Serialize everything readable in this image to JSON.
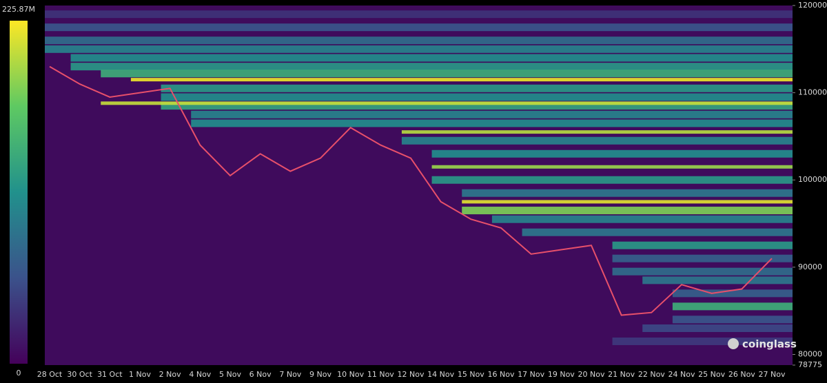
{
  "chart_data": {
    "type": "heatmap",
    "categories": [
      "28 Oct",
      "30 Oct",
      "31 Oct",
      "1 Nov",
      "2 Nov",
      "4 Nov",
      "5 Nov",
      "6 Nov",
      "7 Nov",
      "9 Nov",
      "10 Nov",
      "11 Nov",
      "12 Nov",
      "14 Nov",
      "15 Nov",
      "16 Nov",
      "17 Nov",
      "19 Nov",
      "20 Nov",
      "21 Nov",
      "22 Nov",
      "24 Nov",
      "25 Nov",
      "26 Nov",
      "27 Nov"
    ],
    "values": [
      113000,
      111000,
      109500,
      110000,
      110500,
      104000,
      100500,
      103000,
      101000,
      102500,
      106000,
      104000,
      102500,
      97500,
      95500,
      94500,
      91500,
      92000,
      92500,
      84500,
      84800,
      88000,
      87000,
      87500,
      91000
    ],
    "color": "#e8506a",
    "ylim": [
      78775,
      120000
    ],
    "yticks": [
      78775,
      80000,
      90000,
      100000,
      110000,
      120000
    ],
    "zlim": [
      0,
      225.87
    ],
    "zticks": [
      0,
      {
        "value": 225.87,
        "label": "225.87M"
      }
    ],
    "bands": [
      {
        "price": 119000,
        "start": "28 Oct",
        "value": 35
      },
      {
        "price": 117500,
        "start": "28 Oct",
        "value": 60
      },
      {
        "price": 116000,
        "start": "28 Oct",
        "value": 80
      },
      {
        "price": 115000,
        "start": "28 Oct",
        "value": 100
      },
      {
        "price": 114000,
        "start": "30 Oct",
        "value": 110
      },
      {
        "price": 113000,
        "start": "30 Oct",
        "value": 120
      },
      {
        "price": 112200,
        "start": "31 Oct",
        "value": 140
      },
      {
        "price": 110500,
        "start": "2 Nov",
        "value": 120
      },
      {
        "price": 109500,
        "start": "2 Nov",
        "value": 110
      },
      {
        "price": 108500,
        "start": "2 Nov",
        "value": 130
      },
      {
        "price": 107500,
        "start": "4 Nov",
        "value": 100
      },
      {
        "price": 106500,
        "start": "4 Nov",
        "value": 110
      },
      {
        "price": 104500,
        "start": "12 Nov",
        "value": 100
      },
      {
        "price": 103000,
        "start": "14 Nov",
        "value": 110
      },
      {
        "price": 100000,
        "start": "14 Nov",
        "value": 120
      },
      {
        "price": 98500,
        "start": "15 Nov",
        "value": 90
      },
      {
        "price": 96500,
        "start": "15 Nov",
        "value": 180
      },
      {
        "price": 95500,
        "start": "16 Nov",
        "value": 100
      },
      {
        "price": 94000,
        "start": "17 Nov",
        "value": 90
      },
      {
        "price": 92500,
        "start": "21 Nov",
        "value": 120
      },
      {
        "price": 91000,
        "start": "21 Nov",
        "value": 70
      },
      {
        "price": 89500,
        "start": "21 Nov",
        "value": 80
      },
      {
        "price": 88500,
        "start": "22 Nov",
        "value": 90
      },
      {
        "price": 87000,
        "start": "24 Nov",
        "value": 70
      },
      {
        "price": 85500,
        "start": "24 Nov",
        "value": 140
      },
      {
        "price": 84000,
        "start": "24 Nov",
        "value": 60
      },
      {
        "price": 83000,
        "start": "22 Nov",
        "value": 50
      },
      {
        "price": 81500,
        "start": "21 Nov",
        "value": 40
      },
      {
        "price": 111500,
        "start": "1 Nov",
        "value": 220
      },
      {
        "price": 105500,
        "start": "12 Nov",
        "value": 200
      },
      {
        "price": 101500,
        "start": "14 Nov",
        "value": 190
      },
      {
        "price": 97500,
        "start": "15 Nov",
        "value": 215
      },
      {
        "price": 108800,
        "start": "31 Oct",
        "value": 205
      }
    ],
    "brand": "coinglass"
  }
}
